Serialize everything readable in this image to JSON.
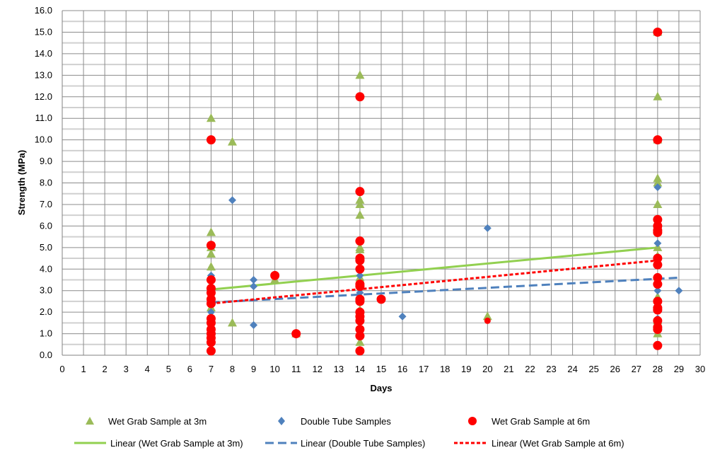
{
  "chart_data": {
    "type": "scatter",
    "title": "",
    "xlabel": "Days",
    "ylabel": "Strength (MPa)",
    "xlim": [
      0,
      30
    ],
    "ylim": [
      0,
      16
    ],
    "x_ticks": [
      0,
      1,
      2,
      3,
      4,
      5,
      6,
      7,
      8,
      9,
      10,
      11,
      12,
      13,
      14,
      15,
      16,
      17,
      18,
      19,
      20,
      21,
      22,
      23,
      24,
      25,
      26,
      27,
      28,
      29,
      30
    ],
    "y_ticks": [
      "0.0",
      "1.0",
      "2.0",
      "3.0",
      "4.0",
      "5.0",
      "6.0",
      "7.0",
      "8.0",
      "9.0",
      "10.0",
      "11.0",
      "12.0",
      "13.0",
      "14.0",
      "15.0",
      "16.0"
    ],
    "grid": true,
    "legend_position": "bottom",
    "series": [
      {
        "name": "Wet Grab Sample at 3m",
        "marker": "triangle",
        "color": "#9bbb59",
        "points": [
          [
            7,
            11.0
          ],
          [
            7,
            5.7
          ],
          [
            7,
            5.0
          ],
          [
            7,
            4.7
          ],
          [
            7,
            4.1
          ],
          [
            7,
            2.2
          ],
          [
            7,
            1.7
          ],
          [
            8,
            9.9
          ],
          [
            8,
            1.5
          ],
          [
            10,
            3.5
          ],
          [
            11,
            1.0
          ],
          [
            14,
            13.0
          ],
          [
            14,
            7.2
          ],
          [
            14,
            7.0
          ],
          [
            14,
            6.5
          ],
          [
            14,
            5.0
          ],
          [
            14,
            4.9
          ],
          [
            14,
            3.6
          ],
          [
            14,
            2.1
          ],
          [
            14,
            1.0
          ],
          [
            14,
            0.6
          ],
          [
            20,
            1.8
          ],
          [
            28,
            15.0
          ],
          [
            28,
            12.0
          ],
          [
            28,
            10.0
          ],
          [
            28,
            8.2
          ],
          [
            28,
            8.0
          ],
          [
            28,
            7.0
          ],
          [
            28,
            5.0
          ],
          [
            28,
            4.6
          ],
          [
            28,
            2.7
          ],
          [
            28,
            1.6
          ],
          [
            28,
            1.0
          ]
        ]
      },
      {
        "name": "Double Tube Samples",
        "marker": "diamond",
        "color": "#4f81bd",
        "points": [
          [
            7,
            3.7
          ],
          [
            7,
            2.0
          ],
          [
            8,
            7.2
          ],
          [
            9,
            3.5
          ],
          [
            9,
            3.2
          ],
          [
            9,
            1.4
          ],
          [
            14,
            3.7
          ],
          [
            14,
            2.9
          ],
          [
            14,
            2.6
          ],
          [
            14,
            1.8
          ],
          [
            16,
            1.8
          ],
          [
            20,
            5.9
          ],
          [
            28,
            7.8
          ],
          [
            28,
            5.2
          ],
          [
            28,
            3.0
          ],
          [
            28,
            1.7
          ],
          [
            29,
            3.0
          ]
        ]
      },
      {
        "name": "Wet Grab Sample at 6m",
        "marker": "circle",
        "color": "#ff0000",
        "points": [
          [
            7,
            10.0
          ],
          [
            7,
            5.1
          ],
          [
            7,
            3.5
          ],
          [
            7,
            3.1
          ],
          [
            7,
            2.9
          ],
          [
            7,
            2.6
          ],
          [
            7,
            2.4
          ],
          [
            7,
            1.7
          ],
          [
            7,
            1.5
          ],
          [
            7,
            1.2
          ],
          [
            7,
            1.0
          ],
          [
            7,
            0.8
          ],
          [
            7,
            0.6
          ],
          [
            7,
            0.2
          ],
          [
            10,
            3.7
          ],
          [
            11,
            1.0
          ],
          [
            14,
            12.0
          ],
          [
            14,
            7.6
          ],
          [
            14,
            5.3
          ],
          [
            14,
            4.5
          ],
          [
            14,
            4.4
          ],
          [
            14,
            4.0
          ],
          [
            14,
            3.3
          ],
          [
            14,
            3.2
          ],
          [
            14,
            2.6
          ],
          [
            14,
            2.5
          ],
          [
            14,
            2.0
          ],
          [
            14,
            1.8
          ],
          [
            14,
            1.6
          ],
          [
            14,
            1.2
          ],
          [
            14,
            0.9
          ],
          [
            14,
            0.2
          ],
          [
            15,
            2.6
          ],
          [
            20,
            1.6
          ],
          [
            28,
            15.0
          ],
          [
            28,
            10.0
          ],
          [
            28,
            6.3
          ],
          [
            28,
            6.0
          ],
          [
            28,
            5.8
          ],
          [
            28,
            5.7
          ],
          [
            28,
            4.5
          ],
          [
            28,
            4.2
          ],
          [
            28,
            3.6
          ],
          [
            28,
            3.3
          ],
          [
            28,
            2.5
          ],
          [
            28,
            2.2
          ],
          [
            28,
            2.1
          ],
          [
            28,
            1.6
          ],
          [
            28,
            1.3
          ],
          [
            28,
            1.2
          ],
          [
            28,
            0.45
          ]
        ]
      }
    ],
    "trendlines": [
      {
        "name": "Linear (Wet Grab Sample at 3m)",
        "color": "#92d050",
        "style": "solid",
        "from": [
          7,
          3.05
        ],
        "to": [
          28,
          5.0
        ]
      },
      {
        "name": "Linear (Double Tube Samples)",
        "color": "#4f81bd",
        "style": "long-dash",
        "from": [
          7,
          2.45
        ],
        "to": [
          29,
          3.6
        ]
      },
      {
        "name": "Linear (Wet Grab Sample at 6m)",
        "color": "#ff0000",
        "style": "dash",
        "from": [
          7,
          2.4
        ],
        "to": [
          28,
          4.4
        ]
      }
    ]
  }
}
